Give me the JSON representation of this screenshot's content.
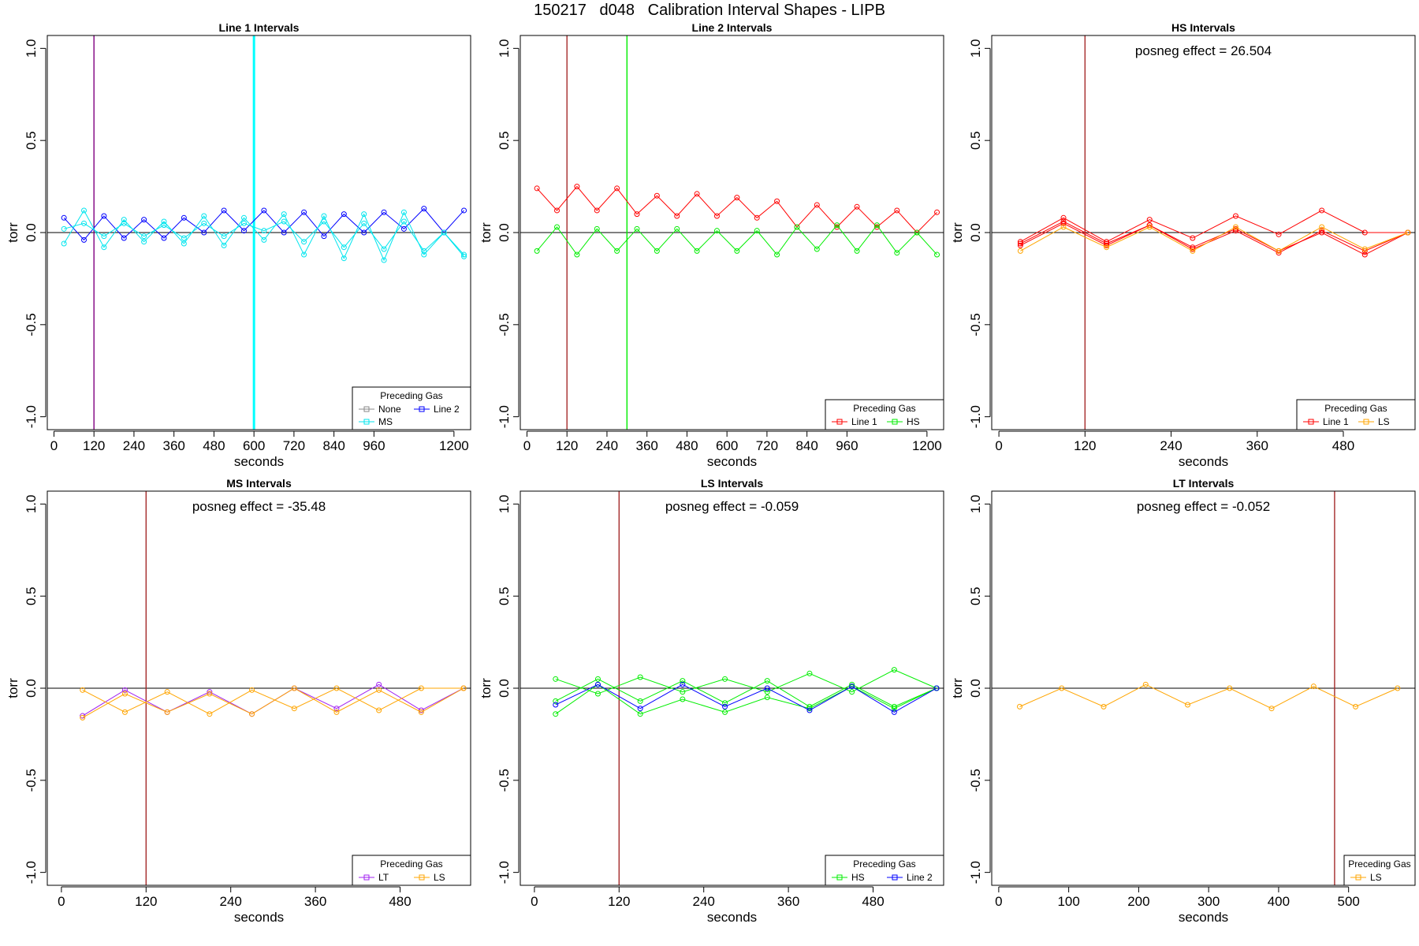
{
  "page": {
    "title": "150217   d048   Calibration Interval Shapes - LIPB"
  },
  "chart_data": [
    {
      "type": "line",
      "title": "Line 1 Intervals",
      "xlabel": "seconds",
      "ylabel": "torr",
      "xlim": [
        -20,
        1250
      ],
      "ylim": [
        -1.07,
        1.07
      ],
      "xticks": [
        0,
        120,
        240,
        360,
        480,
        600,
        720,
        840,
        960,
        1200
      ],
      "yticks": [
        -1.0,
        -0.5,
        0.0,
        0.5,
        1.0
      ],
      "ytick_labels": [
        "-1.0",
        "-0.5",
        "0.0",
        "0.5",
        "1.0"
      ],
      "vlines": [
        {
          "x": 120,
          "color": "#800080"
        },
        {
          "x": 600,
          "color": "#00ffff"
        }
      ],
      "hline": 0,
      "legend": {
        "title": "Preceding Gas",
        "position": "bottom-right",
        "entries": [
          "None",
          "Line 2",
          "MS"
        ]
      },
      "annotation": "",
      "series": [
        {
          "name": "None",
          "color": "#888888",
          "x": [],
          "y": []
        },
        {
          "name": "Line 2",
          "color": "#0000ff",
          "x": [
            30,
            90,
            150,
            210,
            270,
            330,
            390,
            450,
            510,
            570,
            630,
            690,
            750,
            810,
            870,
            930,
            990,
            1050,
            1110,
            1170,
            1230
          ],
          "y": [
            0.08,
            -0.04,
            0.09,
            -0.03,
            0.07,
            -0.03,
            0.08,
            0.0,
            0.12,
            0.01,
            0.12,
            0.0,
            0.11,
            -0.02,
            0.1,
            0.0,
            0.11,
            0.02,
            0.13,
            0.0,
            0.12
          ]
        },
        {
          "name": "MS",
          "color": "#00e5ee",
          "x": [
            30,
            90,
            150,
            210,
            270,
            330,
            390,
            450,
            510,
            570,
            630,
            690,
            750,
            810,
            870,
            930,
            990,
            1050,
            1110,
            1170,
            1230
          ],
          "y": [
            -0.06,
            0.12,
            -0.08,
            0.07,
            -0.05,
            0.06,
            -0.06,
            0.09,
            -0.07,
            0.08,
            -0.04,
            0.1,
            -0.12,
            0.09,
            -0.14,
            0.1,
            -0.15,
            0.11,
            -0.12,
            0.0,
            -0.12
          ]
        },
        {
          "name": "MS",
          "color": "#00e5ee",
          "x": [
            30,
            90,
            150,
            210,
            270,
            330,
            390,
            450,
            510,
            570,
            630,
            690,
            750,
            810,
            870,
            930,
            990,
            1050,
            1110,
            1170,
            1230
          ],
          "y": [
            0.02,
            0.05,
            -0.02,
            0.05,
            -0.02,
            0.04,
            -0.03,
            0.05,
            -0.02,
            0.05,
            0.01,
            0.06,
            -0.05,
            0.06,
            -0.08,
            0.05,
            -0.09,
            0.06,
            -0.1,
            0.0,
            -0.13
          ]
        }
      ]
    },
    {
      "type": "line",
      "title": "Line 2 Intervals",
      "xlabel": "seconds",
      "ylabel": "torr",
      "xlim": [
        -20,
        1250
      ],
      "ylim": [
        -1.07,
        1.07
      ],
      "xticks": [
        0,
        120,
        240,
        360,
        480,
        600,
        720,
        840,
        960,
        1200
      ],
      "yticks": [
        -1.0,
        -0.5,
        0.0,
        0.5,
        1.0
      ],
      "ytick_labels": [
        "-1.0",
        "-0.5",
        "0.0",
        "0.5",
        "1.0"
      ],
      "vlines": [
        {
          "x": 120,
          "color": "#a52a2a"
        },
        {
          "x": 300,
          "color": "#00ee00"
        }
      ],
      "hline": 0,
      "legend": {
        "title": "Preceding Gas",
        "position": "bottom-right",
        "entries": [
          "Line 1",
          "HS"
        ]
      },
      "annotation": "",
      "series": [
        {
          "name": "Line 1",
          "color": "#ff0000",
          "x": [
            30,
            90,
            150,
            210,
            270,
            330,
            390,
            450,
            510,
            570,
            630,
            690,
            750,
            810,
            870,
            930,
            990,
            1050,
            1110,
            1170,
            1230
          ],
          "y": [
            0.24,
            0.12,
            0.25,
            0.12,
            0.24,
            0.1,
            0.2,
            0.09,
            0.21,
            0.09,
            0.19,
            0.08,
            0.17,
            0.03,
            0.15,
            0.03,
            0.14,
            0.03,
            0.12,
            0.0,
            0.11
          ]
        },
        {
          "name": "HS",
          "color": "#00ee00",
          "x": [
            30,
            90,
            150,
            210,
            270,
            330,
            390,
            450,
            510,
            570,
            630,
            690,
            750,
            810,
            870,
            930,
            990,
            1050,
            1110,
            1170,
            1230
          ],
          "y": [
            -0.1,
            0.03,
            -0.12,
            0.02,
            -0.1,
            0.02,
            -0.1,
            0.02,
            -0.1,
            0.01,
            -0.1,
            0.01,
            -0.12,
            0.03,
            -0.09,
            0.04,
            -0.1,
            0.04,
            -0.11,
            0.0,
            -0.12
          ]
        }
      ]
    },
    {
      "type": "line",
      "title": "HS Intervals",
      "xlabel": "seconds",
      "ylabel": "torr",
      "xlim": [
        -10,
        580
      ],
      "ylim": [
        -1.07,
        1.07
      ],
      "xticks": [
        0,
        120,
        240,
        360,
        480
      ],
      "yticks": [
        -1.0,
        -0.5,
        0.0,
        0.5,
        1.0
      ],
      "ytick_labels": [
        "-1.0",
        "-0.5",
        "0.0",
        "0.5",
        "1.0"
      ],
      "vlines": [
        {
          "x": 120,
          "color": "#a52a2a"
        }
      ],
      "hline": 0,
      "legend": {
        "title": "Preceding Gas",
        "position": "bottom-right",
        "entries": [
          "Line 1",
          "LS"
        ]
      },
      "annotation": "posneg effect = 26.504",
      "series": [
        {
          "name": "Line 1",
          "color": "#ff0000",
          "x": [
            30,
            90,
            150,
            210,
            270,
            330,
            390,
            450,
            510,
            570
          ],
          "y": [
            -0.05,
            0.08,
            -0.05,
            0.07,
            -0.03,
            0.09,
            -0.01,
            0.12,
            0.0,
            0.0
          ]
        },
        {
          "name": "Line 1",
          "color": "#ff0000",
          "x": [
            30,
            90,
            150,
            210,
            270,
            330,
            390,
            450,
            510,
            570
          ],
          "y": [
            -0.06,
            0.06,
            -0.06,
            0.04,
            -0.08,
            0.02,
            -0.1,
            0.0,
            -0.12,
            0.0
          ]
        },
        {
          "name": "Line 1",
          "color": "#ff0000",
          "x": [
            30,
            90,
            150,
            210,
            270,
            330,
            390,
            450,
            510,
            570
          ],
          "y": [
            -0.07,
            0.05,
            -0.07,
            0.04,
            -0.09,
            0.01,
            -0.11,
            0.01,
            -0.1,
            0.0
          ]
        },
        {
          "name": "LS",
          "color": "#ffa500",
          "x": [
            30,
            90,
            150,
            210,
            270,
            330,
            390,
            450,
            510,
            570
          ],
          "y": [
            -0.1,
            0.03,
            -0.08,
            0.03,
            -0.1,
            0.03,
            -0.1,
            0.03,
            -0.09,
            0.0
          ]
        }
      ]
    },
    {
      "type": "line",
      "title": "MS Intervals",
      "xlabel": "seconds",
      "ylabel": "torr",
      "xlim": [
        -20,
        580
      ],
      "ylim": [
        -1.07,
        1.07
      ],
      "xticks": [
        0,
        120,
        240,
        360,
        480
      ],
      "yticks": [
        -1.0,
        -0.5,
        0.0,
        0.5,
        1.0
      ],
      "ytick_labels": [
        "-1.0",
        "-0.5",
        "0.0",
        "0.5",
        "1.0"
      ],
      "vlines": [
        {
          "x": 120,
          "color": "#a52a2a"
        }
      ],
      "hline": 0,
      "legend": {
        "title": "Preceding Gas",
        "position": "bottom-right",
        "entries": [
          "LT",
          "LS"
        ]
      },
      "annotation": "posneg effect = -35.48",
      "series": [
        {
          "name": "LT",
          "color": "#a020f0",
          "x": [
            30,
            90,
            150,
            210,
            270,
            330,
            390,
            450,
            510,
            570
          ],
          "y": [
            -0.15,
            -0.01,
            -0.13,
            -0.02,
            -0.14,
            0.0,
            -0.11,
            0.02,
            -0.12,
            0.0
          ]
        },
        {
          "name": "LS",
          "color": "#ffa500",
          "x": [
            30,
            90,
            150,
            210,
            270,
            330,
            390,
            450,
            510,
            570
          ],
          "y": [
            -0.01,
            -0.13,
            -0.02,
            -0.14,
            -0.01,
            -0.11,
            0.0,
            -0.12,
            0.0,
            0.0
          ]
        },
        {
          "name": "LS",
          "color": "#ffa500",
          "x": [
            30,
            90,
            150,
            210,
            270,
            330,
            390,
            450,
            510,
            570
          ],
          "y": [
            -0.16,
            -0.03,
            -0.13,
            -0.03,
            -0.14,
            0.0,
            -0.13,
            -0.01,
            -0.13,
            0.0
          ]
        }
      ]
    },
    {
      "type": "line",
      "title": "LS Intervals",
      "xlabel": "seconds",
      "ylabel": "torr",
      "xlim": [
        -20,
        580
      ],
      "ylim": [
        -1.07,
        1.07
      ],
      "xticks": [
        0,
        120,
        240,
        360,
        480
      ],
      "yticks": [
        -1.0,
        -0.5,
        0.0,
        0.5,
        1.0
      ],
      "ytick_labels": [
        "-1.0",
        "-0.5",
        "0.0",
        "0.5",
        "1.0"
      ],
      "vlines": [
        {
          "x": 120,
          "color": "#a52a2a"
        }
      ],
      "hline": 0,
      "legend": {
        "title": "Preceding Gas",
        "position": "bottom-right",
        "entries": [
          "HS",
          "Line 2"
        ]
      },
      "annotation": "posneg effect = -0.059",
      "series": [
        {
          "name": "HS",
          "color": "#00ee00",
          "x": [
            30,
            90,
            150,
            210,
            270,
            330,
            390,
            450,
            510,
            570
          ],
          "y": [
            0.05,
            -0.03,
            0.06,
            -0.02,
            0.05,
            -0.02,
            0.08,
            -0.02,
            0.1,
            0.0
          ]
        },
        {
          "name": "HS",
          "color": "#00ee00",
          "x": [
            30,
            90,
            150,
            210,
            270,
            330,
            390,
            450,
            510,
            570
          ],
          "y": [
            -0.07,
            0.05,
            -0.07,
            0.04,
            -0.08,
            0.04,
            -0.1,
            0.02,
            -0.1,
            0.0
          ]
        },
        {
          "name": "HS",
          "color": "#00ee00",
          "x": [
            30,
            90,
            150,
            210,
            270,
            330,
            390,
            450,
            510,
            570
          ],
          "y": [
            -0.14,
            0.02,
            -0.14,
            -0.06,
            -0.13,
            -0.05,
            -0.11,
            0.01,
            -0.11,
            0.0
          ]
        },
        {
          "name": "Line 2",
          "color": "#0000ff",
          "x": [
            30,
            90,
            150,
            210,
            270,
            330,
            390,
            450,
            510,
            570
          ],
          "y": [
            -0.09,
            0.02,
            -0.11,
            0.02,
            -0.1,
            0.0,
            -0.12,
            0.01,
            -0.13,
            0.0
          ]
        }
      ]
    },
    {
      "type": "line",
      "title": "LT Intervals",
      "xlabel": "seconds",
      "ylabel": "torr",
      "xlim": [
        -10,
        595
      ],
      "ylim": [
        -1.07,
        1.07
      ],
      "xticks": [
        0,
        100,
        200,
        300,
        400,
        500
      ],
      "yticks": [
        -1.0,
        -0.5,
        0.0,
        0.5,
        1.0
      ],
      "ytick_labels": [
        "-1.0",
        "-0.5",
        "0.0",
        "0.5",
        "1.0"
      ],
      "vlines": [
        {
          "x": 480,
          "color": "#a52a2a"
        }
      ],
      "hline": 0,
      "legend": {
        "title": "Preceding Gas",
        "position": "bottom-right",
        "entries": [
          "LS"
        ]
      },
      "annotation": "posneg effect = -0.052",
      "series": [
        {
          "name": "LS",
          "color": "#ffa500",
          "x": [
            30,
            90,
            150,
            210,
            270,
            330,
            390,
            450,
            510,
            570
          ],
          "y": [
            -0.1,
            0.0,
            -0.1,
            0.02,
            -0.09,
            0.0,
            -0.11,
            0.01,
            -0.1,
            0.0
          ]
        }
      ]
    }
  ]
}
